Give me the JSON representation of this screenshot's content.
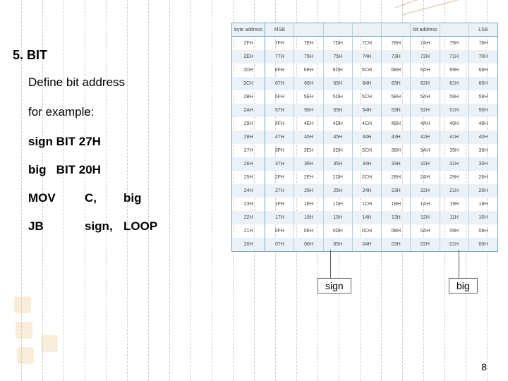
{
  "heading": "5. BIT",
  "line1": "Define bit address",
  "line2": "for example:",
  "line3": "sign BIT 27H",
  "line4": "big   BIT 20H",
  "code1": {
    "a": "MOV",
    "b": "C,",
    "c": "big"
  },
  "code2": {
    "a": "JB",
    "b": "sign,",
    "c": "LOOP"
  },
  "label_sign": "sign",
  "label_big": "big",
  "page_num": "8",
  "table": {
    "header": [
      "byte address",
      "MSB",
      "",
      "",
      "",
      "",
      "bit address",
      "",
      "LSB"
    ],
    "rows": [
      [
        "2FH",
        "7FH",
        "7EH",
        "7DH",
        "7CH",
        "7BH",
        "7AH",
        "79H",
        "78H"
      ],
      [
        "2EH",
        "77H",
        "76H",
        "75H",
        "74H",
        "73H",
        "72H",
        "71H",
        "70H"
      ],
      [
        "2DH",
        "6FH",
        "6EH",
        "6DH",
        "6CH",
        "6BH",
        "6AH",
        "69H",
        "68H"
      ],
      [
        "2CH",
        "67H",
        "66H",
        "65H",
        "64H",
        "63H",
        "62H",
        "61H",
        "60H"
      ],
      [
        "2BH",
        "5FH",
        "5EH",
        "5DH",
        "5CH",
        "5BH",
        "5AH",
        "59H",
        "58H"
      ],
      [
        "2AH",
        "57H",
        "56H",
        "55H",
        "54H",
        "53H",
        "52H",
        "51H",
        "50H"
      ],
      [
        "29H",
        "4FH",
        "4EH",
        "4DH",
        "4CH",
        "4BH",
        "4AH",
        "49H",
        "48H"
      ],
      [
        "28H",
        "47H",
        "46H",
        "45H",
        "44H",
        "43H",
        "42H",
        "41H",
        "40H"
      ],
      [
        "27H",
        "3FH",
        "3EH",
        "3DH",
        "3CH",
        "3BH",
        "3AH",
        "39H",
        "38H"
      ],
      [
        "26H",
        "37H",
        "36H",
        "35H",
        "34H",
        "33H",
        "32H",
        "31H",
        "30H"
      ],
      [
        "25H",
        "2FH",
        "2EH",
        "2DH",
        "2CH",
        "2BH",
        "2AH",
        "29H",
        "28H"
      ],
      [
        "24H",
        "27H",
        "26H",
        "25H",
        "24H",
        "23H",
        "22H",
        "21H",
        "20H"
      ],
      [
        "23H",
        "1FH",
        "1EH",
        "1DH",
        "1CH",
        "1BH",
        "1AH",
        "19H",
        "18H"
      ],
      [
        "22H",
        "17H",
        "16H",
        "15H",
        "14H",
        "13H",
        "12H",
        "11H",
        "10H"
      ],
      [
        "21H",
        "0FH",
        "0EH",
        "0DH",
        "0CH",
        "0BH",
        "0AH",
        "09H",
        "08H"
      ],
      [
        "20H",
        "07H",
        "06H",
        "05H",
        "04H",
        "03H",
        "02H",
        "01H",
        "00H"
      ]
    ],
    "header_bg": "#eaf2f7",
    "border_color": "#7aa6c2",
    "alt_bg": "#eaf2f7"
  },
  "colors": {
    "text": "#000000",
    "grid": "#cccccc"
  }
}
